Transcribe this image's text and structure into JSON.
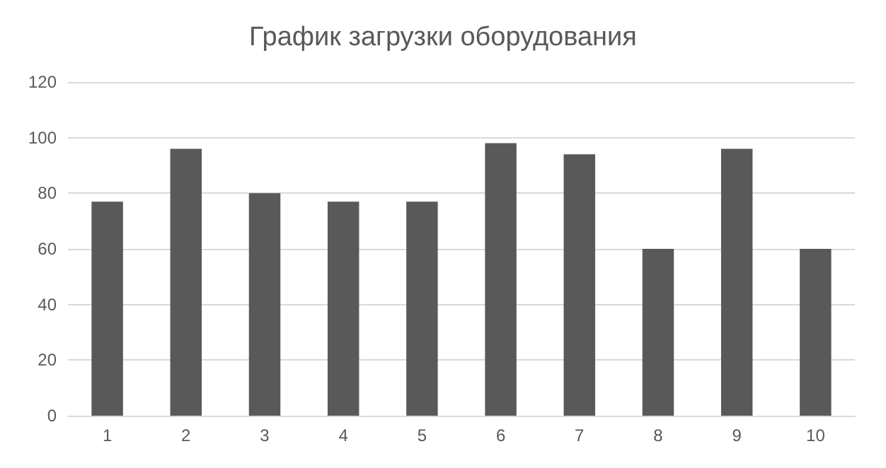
{
  "chart_data": {
    "type": "bar",
    "title": "График загрузки оборудования",
    "categories": [
      "1",
      "2",
      "3",
      "4",
      "5",
      "6",
      "7",
      "8",
      "9",
      "10"
    ],
    "values": [
      77,
      96,
      80,
      77,
      77,
      98,
      94,
      60,
      96,
      60
    ],
    "color": "#595959",
    "ylim": [
      0,
      120
    ],
    "yticks": [
      0,
      20,
      40,
      60,
      80,
      100,
      120
    ],
    "grid": "y"
  }
}
